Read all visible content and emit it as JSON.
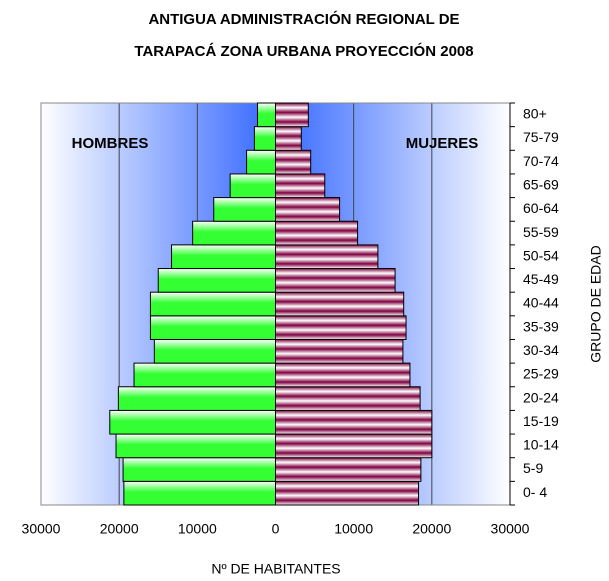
{
  "chart_data": {
    "type": "pyramid",
    "title_lines": [
      "ANTIGUA ADMINISTRACIÓN REGIONAL DE",
      "TARAPACÁ ZONA URBANA PROYECCIÓN 2008"
    ],
    "x_label": "Nº DE HABITANTES",
    "y_label": "GRUPO DE EDAD",
    "annotations": [
      "HOMBRES",
      "MUJERES"
    ],
    "categories": [
      "0- 4",
      "5-9",
      "10-14",
      "15-19",
      "20-24",
      "25-29",
      "30-34",
      "35-39",
      "40-44",
      "45-49",
      "50-54",
      "55-59",
      "60-64",
      "65-69",
      "70-74",
      "75-79",
      "80+"
    ],
    "series": [
      {
        "name": "HOMBRES",
        "side": "left",
        "color": "#33ff33",
        "values": [
          19400,
          19500,
          20400,
          21200,
          20100,
          18100,
          15500,
          16000,
          16000,
          15000,
          13300,
          10600,
          7900,
          5800,
          3700,
          2700,
          2300
        ]
      },
      {
        "name": "MUJERES",
        "side": "right",
        "color": "#800040",
        "values": [
          18300,
          18600,
          20000,
          20000,
          18500,
          17200,
          16300,
          16700,
          16400,
          15300,
          13100,
          10500,
          8200,
          6300,
          4500,
          3300,
          4200
        ]
      }
    ],
    "xlim": [
      -30000,
      30000
    ],
    "xticks": [
      {
        "value": -30000,
        "label": "30000"
      },
      {
        "value": -20000,
        "label": "20000"
      },
      {
        "value": -10000,
        "label": "10000"
      },
      0,
      10000,
      20000,
      30000
    ],
    "negative_tick_color": "#e00000",
    "grid": true
  }
}
